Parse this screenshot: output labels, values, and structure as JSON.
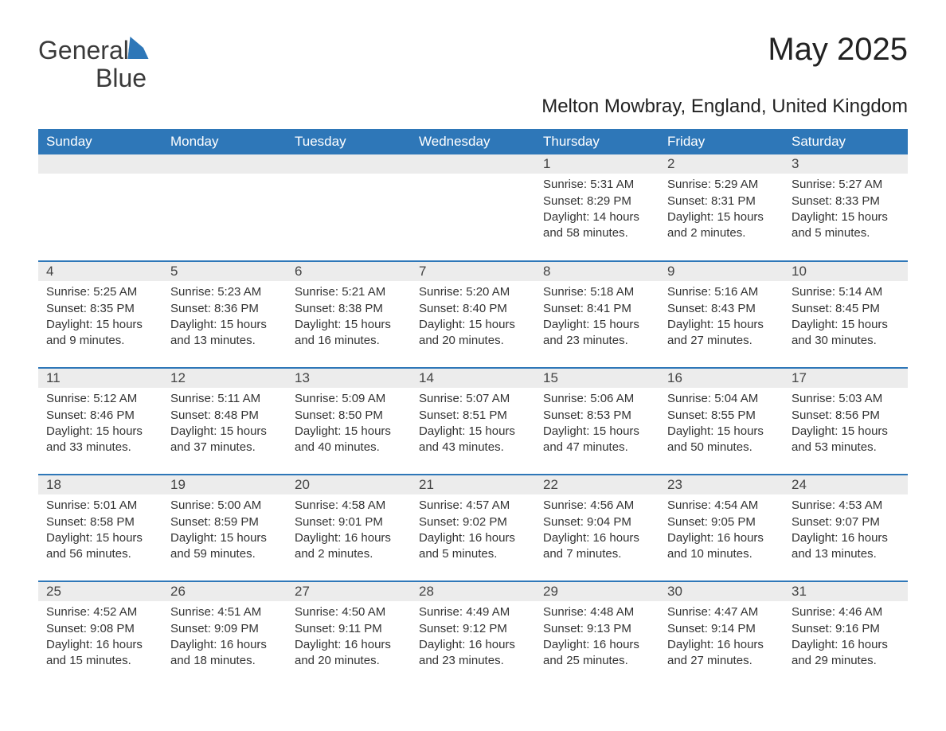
{
  "brand": {
    "text_general": "General",
    "text_blue": "Blue"
  },
  "title": "May 2025",
  "subtitle": "Melton Mowbray, England, United Kingdom",
  "colors": {
    "header_bg": "#2e77b8",
    "header_text": "#ffffff",
    "daynum_bg": "#ececec",
    "text": "#333333",
    "row_divider": "#2e77b8",
    "page_bg": "#ffffff"
  },
  "typography": {
    "title_fontsize_pt": 30,
    "subtitle_fontsize_pt": 18,
    "header_fontsize_pt": 13,
    "body_fontsize_pt": 11,
    "font_family": "Arial"
  },
  "calendar": {
    "day_headers": [
      "Sunday",
      "Monday",
      "Tuesday",
      "Wednesday",
      "Thursday",
      "Friday",
      "Saturday"
    ],
    "weeks": [
      [
        null,
        null,
        null,
        null,
        {
          "num": "1",
          "sunrise": "Sunrise: 5:31 AM",
          "sunset": "Sunset: 8:29 PM",
          "daylight": "Daylight: 14 hours and 58 minutes."
        },
        {
          "num": "2",
          "sunrise": "Sunrise: 5:29 AM",
          "sunset": "Sunset: 8:31 PM",
          "daylight": "Daylight: 15 hours and 2 minutes."
        },
        {
          "num": "3",
          "sunrise": "Sunrise: 5:27 AM",
          "sunset": "Sunset: 8:33 PM",
          "daylight": "Daylight: 15 hours and 5 minutes."
        }
      ],
      [
        {
          "num": "4",
          "sunrise": "Sunrise: 5:25 AM",
          "sunset": "Sunset: 8:35 PM",
          "daylight": "Daylight: 15 hours and 9 minutes."
        },
        {
          "num": "5",
          "sunrise": "Sunrise: 5:23 AM",
          "sunset": "Sunset: 8:36 PM",
          "daylight": "Daylight: 15 hours and 13 minutes."
        },
        {
          "num": "6",
          "sunrise": "Sunrise: 5:21 AM",
          "sunset": "Sunset: 8:38 PM",
          "daylight": "Daylight: 15 hours and 16 minutes."
        },
        {
          "num": "7",
          "sunrise": "Sunrise: 5:20 AM",
          "sunset": "Sunset: 8:40 PM",
          "daylight": "Daylight: 15 hours and 20 minutes."
        },
        {
          "num": "8",
          "sunrise": "Sunrise: 5:18 AM",
          "sunset": "Sunset: 8:41 PM",
          "daylight": "Daylight: 15 hours and 23 minutes."
        },
        {
          "num": "9",
          "sunrise": "Sunrise: 5:16 AM",
          "sunset": "Sunset: 8:43 PM",
          "daylight": "Daylight: 15 hours and 27 minutes."
        },
        {
          "num": "10",
          "sunrise": "Sunrise: 5:14 AM",
          "sunset": "Sunset: 8:45 PM",
          "daylight": "Daylight: 15 hours and 30 minutes."
        }
      ],
      [
        {
          "num": "11",
          "sunrise": "Sunrise: 5:12 AM",
          "sunset": "Sunset: 8:46 PM",
          "daylight": "Daylight: 15 hours and 33 minutes."
        },
        {
          "num": "12",
          "sunrise": "Sunrise: 5:11 AM",
          "sunset": "Sunset: 8:48 PM",
          "daylight": "Daylight: 15 hours and 37 minutes."
        },
        {
          "num": "13",
          "sunrise": "Sunrise: 5:09 AM",
          "sunset": "Sunset: 8:50 PM",
          "daylight": "Daylight: 15 hours and 40 minutes."
        },
        {
          "num": "14",
          "sunrise": "Sunrise: 5:07 AM",
          "sunset": "Sunset: 8:51 PM",
          "daylight": "Daylight: 15 hours and 43 minutes."
        },
        {
          "num": "15",
          "sunrise": "Sunrise: 5:06 AM",
          "sunset": "Sunset: 8:53 PM",
          "daylight": "Daylight: 15 hours and 47 minutes."
        },
        {
          "num": "16",
          "sunrise": "Sunrise: 5:04 AM",
          "sunset": "Sunset: 8:55 PM",
          "daylight": "Daylight: 15 hours and 50 minutes."
        },
        {
          "num": "17",
          "sunrise": "Sunrise: 5:03 AM",
          "sunset": "Sunset: 8:56 PM",
          "daylight": "Daylight: 15 hours and 53 minutes."
        }
      ],
      [
        {
          "num": "18",
          "sunrise": "Sunrise: 5:01 AM",
          "sunset": "Sunset: 8:58 PM",
          "daylight": "Daylight: 15 hours and 56 minutes."
        },
        {
          "num": "19",
          "sunrise": "Sunrise: 5:00 AM",
          "sunset": "Sunset: 8:59 PM",
          "daylight": "Daylight: 15 hours and 59 minutes."
        },
        {
          "num": "20",
          "sunrise": "Sunrise: 4:58 AM",
          "sunset": "Sunset: 9:01 PM",
          "daylight": "Daylight: 16 hours and 2 minutes."
        },
        {
          "num": "21",
          "sunrise": "Sunrise: 4:57 AM",
          "sunset": "Sunset: 9:02 PM",
          "daylight": "Daylight: 16 hours and 5 minutes."
        },
        {
          "num": "22",
          "sunrise": "Sunrise: 4:56 AM",
          "sunset": "Sunset: 9:04 PM",
          "daylight": "Daylight: 16 hours and 7 minutes."
        },
        {
          "num": "23",
          "sunrise": "Sunrise: 4:54 AM",
          "sunset": "Sunset: 9:05 PM",
          "daylight": "Daylight: 16 hours and 10 minutes."
        },
        {
          "num": "24",
          "sunrise": "Sunrise: 4:53 AM",
          "sunset": "Sunset: 9:07 PM",
          "daylight": "Daylight: 16 hours and 13 minutes."
        }
      ],
      [
        {
          "num": "25",
          "sunrise": "Sunrise: 4:52 AM",
          "sunset": "Sunset: 9:08 PM",
          "daylight": "Daylight: 16 hours and 15 minutes."
        },
        {
          "num": "26",
          "sunrise": "Sunrise: 4:51 AM",
          "sunset": "Sunset: 9:09 PM",
          "daylight": "Daylight: 16 hours and 18 minutes."
        },
        {
          "num": "27",
          "sunrise": "Sunrise: 4:50 AM",
          "sunset": "Sunset: 9:11 PM",
          "daylight": "Daylight: 16 hours and 20 minutes."
        },
        {
          "num": "28",
          "sunrise": "Sunrise: 4:49 AM",
          "sunset": "Sunset: 9:12 PM",
          "daylight": "Daylight: 16 hours and 23 minutes."
        },
        {
          "num": "29",
          "sunrise": "Sunrise: 4:48 AM",
          "sunset": "Sunset: 9:13 PM",
          "daylight": "Daylight: 16 hours and 25 minutes."
        },
        {
          "num": "30",
          "sunrise": "Sunrise: 4:47 AM",
          "sunset": "Sunset: 9:14 PM",
          "daylight": "Daylight: 16 hours and 27 minutes."
        },
        {
          "num": "31",
          "sunrise": "Sunrise: 4:46 AM",
          "sunset": "Sunset: 9:16 PM",
          "daylight": "Daylight: 16 hours and 29 minutes."
        }
      ]
    ]
  }
}
